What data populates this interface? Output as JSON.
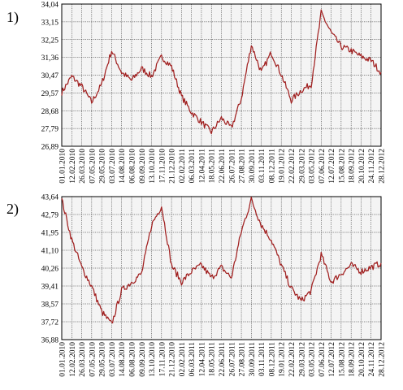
{
  "chart_data": [
    {
      "type": "line",
      "panel_label": "1)",
      "x_ticks": [
        "01.01.2010",
        "12.02.2010",
        "26.03.2010",
        "07.05.2010",
        "29.05.2010",
        "03.07.2010",
        "14.08.2010",
        "06.08.2010",
        "09.09.2010",
        "13.10.2010",
        "17.11.2010",
        "21.12.2010",
        "02.02.2011",
        "06.03.2011",
        "12.04.2011",
        "18.05.2011",
        "22.06.2011",
        "26.07.2011",
        "27.08.2011",
        "30.09.2011",
        "03.11.2011",
        "08.12.2011",
        "19.01.2012",
        "22.02.2012",
        "29.03.2012",
        "03.05.2012",
        "07.06.2012",
        "12.07.2012",
        "15.08.2012",
        "18.09.2012",
        "20.10.2012",
        "24.11.2012",
        "28.12.2012"
      ],
      "y_ticks": [
        "26,89",
        "27,79",
        "28,68",
        "29,57",
        "30,47",
        "31,36",
        "32,25",
        "33,15",
        "34,04"
      ],
      "ylim": [
        26.89,
        34.04
      ],
      "grid": true,
      "series": [
        {
          "color": "#a01f1f",
          "x": [
            "01.01.2010",
            "12.02.2010",
            "26.03.2010",
            "07.05.2010",
            "29.05.2010",
            "03.07.2010",
            "14.08.2010",
            "06.08.2010",
            "09.09.2010",
            "13.10.2010",
            "17.11.2010",
            "21.12.2010",
            "02.02.2011",
            "06.03.2011",
            "12.04.2011",
            "18.05.2011",
            "22.06.2011",
            "26.07.2011",
            "27.08.2011",
            "30.09.2011",
            "03.11.2011",
            "08.12.2011",
            "19.01.2012",
            "22.02.2012",
            "29.03.2012",
            "03.05.2012",
            "07.06.2012",
            "12.07.2012",
            "15.08.2012",
            "18.09.2012",
            "20.10.2012",
            "24.11.2012",
            "28.12.2012"
          ],
          "values": [
            29.6,
            30.4,
            29.9,
            29.1,
            30.0,
            31.7,
            30.6,
            30.2,
            30.8,
            30.4,
            31.4,
            30.9,
            29.4,
            28.6,
            28.1,
            27.6,
            28.3,
            27.8,
            29.3,
            32.0,
            30.6,
            31.6,
            30.5,
            29.2,
            29.7,
            30.0,
            33.6,
            32.6,
            31.9,
            31.7,
            31.4,
            31.2,
            30.6
          ]
        }
      ]
    },
    {
      "type": "line",
      "panel_label": "2)",
      "x_ticks": [
        "01.01.2010",
        "12.02.2010",
        "26.03.2010",
        "07.05.2010",
        "29.05.2010",
        "03.07.2010",
        "14.08.2010",
        "06.08.2010",
        "09.09.2010",
        "13.10.2010",
        "17.11.2010",
        "21.12.2010",
        "02.02.2011",
        "06.03.2011",
        "12.04.2011",
        "18.05.2011",
        "22.06.2011",
        "26.07.2011",
        "27.08.2011",
        "30.09.2011",
        "03.11.2011",
        "08.12.2011",
        "19.01.2012",
        "22.02.2012",
        "29.03.2012",
        "03.05.2012",
        "07.06.2012",
        "12.07.2012",
        "15.08.2012",
        "18.09.2012",
        "20.10.2012",
        "24.11.2012",
        "28.12.2012"
      ],
      "y_ticks": [
        "36,88",
        "37,72",
        "38,57",
        "39,41",
        "40,26",
        "41,10",
        "41,95",
        "42,79",
        "43,64"
      ],
      "ylim": [
        36.88,
        43.64
      ],
      "grid": true,
      "series": [
        {
          "color": "#a01f1f",
          "x": [
            "01.01.2010",
            "12.02.2010",
            "26.03.2010",
            "07.05.2010",
            "29.05.2010",
            "03.07.2010",
            "14.08.2010",
            "06.08.2010",
            "09.09.2010",
            "13.10.2010",
            "17.11.2010",
            "21.12.2010",
            "02.02.2011",
            "06.03.2011",
            "12.04.2011",
            "18.05.2011",
            "22.06.2011",
            "26.07.2011",
            "27.08.2011",
            "30.09.2011",
            "03.11.2011",
            "08.12.2011",
            "19.01.2012",
            "22.02.2012",
            "29.03.2012",
            "03.05.2012",
            "07.06.2012",
            "12.07.2012",
            "15.08.2012",
            "18.09.2012",
            "20.10.2012",
            "24.11.2012",
            "28.12.2012"
          ],
          "values": [
            43.5,
            41.6,
            40.3,
            39.4,
            38.2,
            37.6,
            39.2,
            39.6,
            40.0,
            42.3,
            43.2,
            40.4,
            39.6,
            40.1,
            40.4,
            39.8,
            40.3,
            39.8,
            42.0,
            43.5,
            42.3,
            41.6,
            40.4,
            39.3,
            38.7,
            39.2,
            40.9,
            39.6,
            40.0,
            40.4,
            40.1,
            40.3,
            40.5
          ]
        }
      ]
    }
  ]
}
